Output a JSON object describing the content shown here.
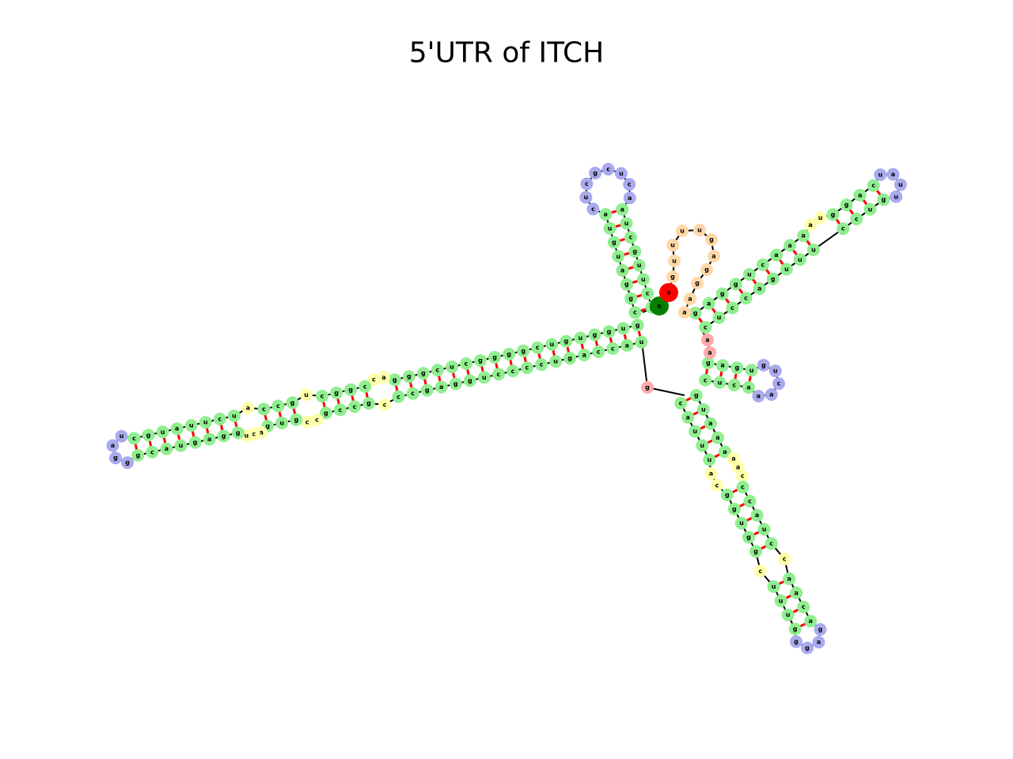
{
  "title": "5'UTR of ITCH",
  "five_prime": "a",
  "three_prime": "a",
  "tail": "guuuugaggaa",
  "linkers": [
    "g",
    "aa"
  ],
  "arms": [
    {
      "segments": [
        {
          "stem": {
            "a": "gcuugcua",
            "b": "cggaugua"
          }
        }
      ],
      "hairpin": "acucgcuc"
    },
    {
      "segments": [
        {
          "stem": {
            "a": "guggugucggggcucggg",
            "b": "uaccaguccccuggagcc"
          }
        },
        {
          "loop": {
            "a": "ac",
            "b": "c"
          }
        },
        {
          "stem": {
            "a": "cggc",
            "b": "gccg"
          }
        },
        {
          "loop": {
            "a": "u",
            "b": "cc"
          }
        },
        {
          "stem": {
            "a": "gcc",
            "b": "gug"
          }
        },
        {
          "loop": {
            "a": "a",
            "b": "acu"
          }
        },
        {
          "stem": {
            "a": "ucuuaugc",
            "b": "ggaguacg"
          }
        }
      ],
      "hairpin": "uagg"
    },
    {
      "segments": [
        {
          "stem": {
            "a": "cuccaguuu",
            "b": "gaggucaaa"
          }
        },
        {
          "loop": {
            "b": "au"
          }
        },
        {
          "stem": {
            "a": "ccug",
            "b": "ggac"
          }
        }
      ],
      "hairpin": "uuau"
    },
    {
      "segments": [
        {
          "stem": {
            "a": "cuca",
            "b": "gagu"
          }
        }
      ],
      "hairpin": "aacug"
    },
    {
      "segments": [
        {
          "stem": {
            "a": "cauuu",
            "b": "guaaa"
          }
        },
        {
          "loop": {
            "a": "ac",
            "b": "aac"
          }
        },
        {
          "stem": {
            "a": "ggugg",
            "b": "ccauc"
          }
        },
        {
          "loop": {
            "a": "c",
            "b": "c"
          }
        },
        {
          "stem": {
            "a": "uuug",
            "b": "aaca"
          }
        }
      ],
      "hairpin": "ggag"
    }
  ]
}
